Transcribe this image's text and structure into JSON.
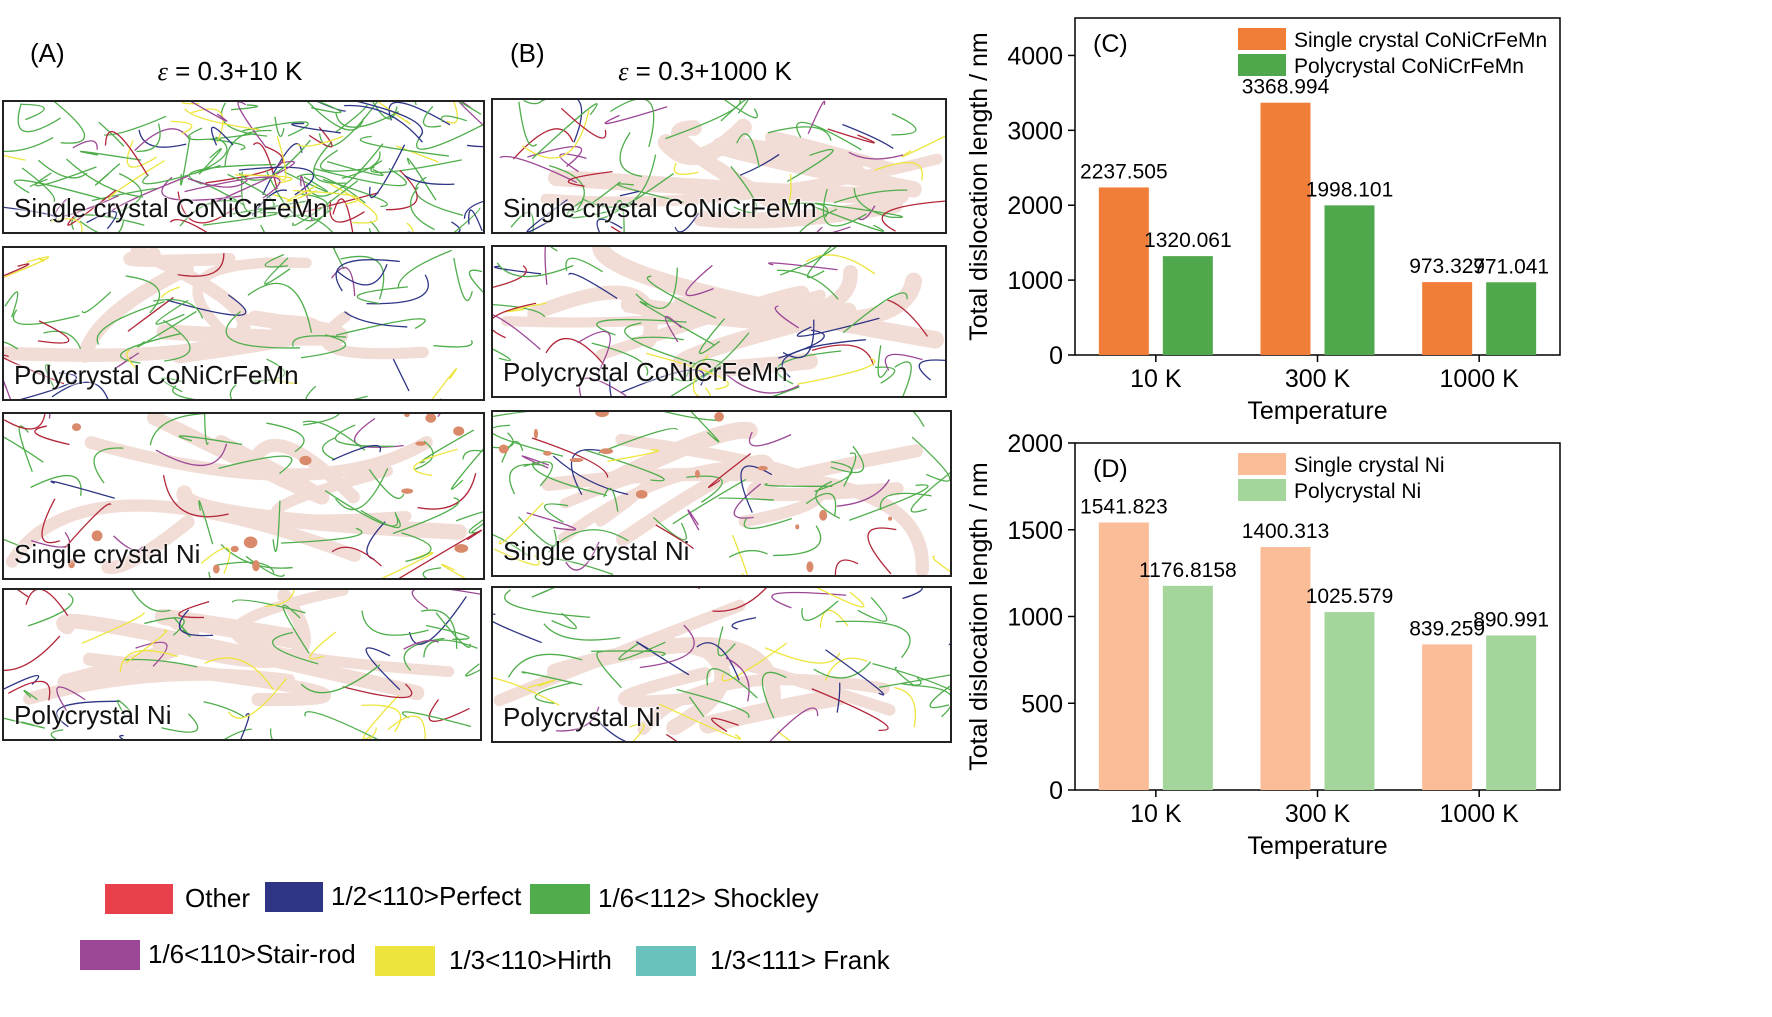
{
  "panel_a": {
    "label": "(A)",
    "title_symbol": "ε",
    "title_rest": " = 0.3+10 K"
  },
  "panel_b": {
    "label": "(B)",
    "title_symbol": "ε",
    "title_rest": " = 0.3+1000 K"
  },
  "snapshots": {
    "a": [
      "Single crystal CoNiCrFeMn",
      "Polycrystal CoNiCrFeMn",
      "Single crystal Ni",
      "Polycrystal Ni"
    ],
    "b": [
      "Single crystal CoNiCrFeMn",
      "Polycrystal CoNiCrFeMn",
      "Single crystal Ni",
      "Polycrystal Ni"
    ]
  },
  "dislocation_legend": [
    {
      "label": "Other",
      "color": "#e8414b"
    },
    {
      "label": "1/2<110>Perfect",
      "color": "#2e3585"
    },
    {
      "label": "1/6<112> Shockley",
      "color": "#4fae4b"
    },
    {
      "label": "1/6<110>Stair-rod",
      "color": "#9c4796"
    },
    {
      "label": "1/3<110>Hirth",
      "color": "#ede53e"
    },
    {
      "label": "1/3<111> Frank",
      "color": "#6ac2bd"
    }
  ],
  "chart_data": [
    {
      "type": "bar",
      "label": "(C)",
      "categories": [
        "10 K",
        "300 K",
        "1000 K"
      ],
      "series": [
        {
          "name": "Single crystal CoNiCrFeMn",
          "color": "#f07e38",
          "values": [
            2237.505,
            3368.994,
            973.327
          ],
          "value_labels": [
            "2237.505",
            "3368.994",
            "973.327"
          ]
        },
        {
          "name": "Polycrystal CoNiCrFeMn",
          "color": "#4fa84b",
          "values": [
            1320.061,
            1998.101,
            971.041
          ],
          "value_labels": [
            "1320.061",
            "1998.101",
            "971.041"
          ]
        }
      ],
      "xlabel": "Temperature",
      "ylabel": "Total dislocation length / nm",
      "ylim": [
        0,
        4500
      ],
      "yticks": [
        0,
        1000,
        2000,
        3000,
        4000
      ],
      "legend": "top-right"
    },
    {
      "type": "bar",
      "label": "(D)",
      "categories": [
        "10 K",
        "300 K",
        "1000 K"
      ],
      "series": [
        {
          "name": "Single crystal Ni",
          "color": "#fbbc98",
          "values": [
            1541.823,
            1400.313,
            839.259
          ],
          "value_labels": [
            "1541.823",
            "1400.313",
            "839.259"
          ]
        },
        {
          "name": "Polycrystal Ni",
          "color": "#a4d69c",
          "values": [
            1176.8158,
            1025.579,
            890.991
          ],
          "value_labels": [
            "1176.8158",
            "1025.579",
            "890.991"
          ]
        }
      ],
      "xlabel": "Temperature",
      "ylabel": "Total dislocation length / nm",
      "ylim": [
        0,
        2000
      ],
      "yticks": [
        0,
        500,
        1000,
        1500,
        2000
      ],
      "legend": "top-right"
    }
  ]
}
